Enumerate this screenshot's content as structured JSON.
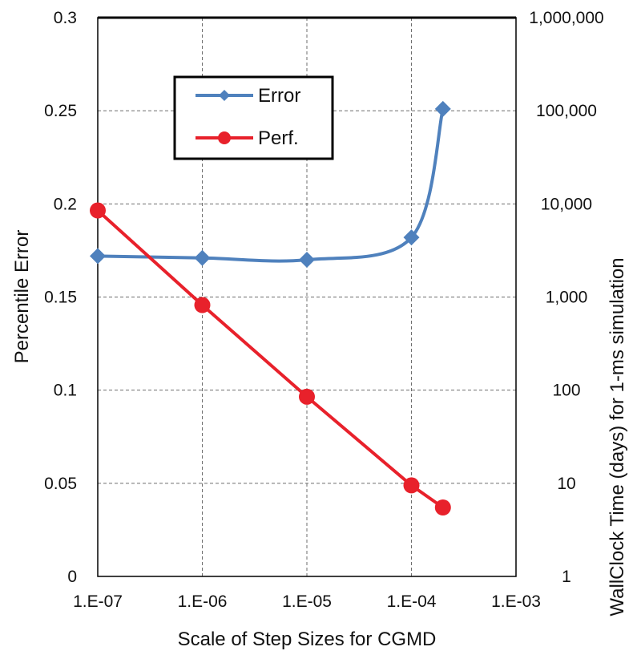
{
  "chart_data": {
    "type": "line",
    "title": "",
    "xlabel": "Scale of Step Sizes for CGMD",
    "ylabel": "Percentile Error",
    "y2label": "WallClock Time (days) for 1-ms simulation",
    "x_scale": "log",
    "xlim": [
      1e-07,
      0.001
    ],
    "ylim": [
      0,
      0.3
    ],
    "y2_scale": "log",
    "y2lim": [
      1,
      1000000
    ],
    "grid": true,
    "legend_position": "top-left",
    "x_tick_labels": [
      "1.E-07",
      "1.E-06",
      "1.E-05",
      "1.E-04",
      "1.E-03"
    ],
    "y_tick_labels": [
      "0",
      "0.05",
      "0.1",
      "0.15",
      "0.2",
      "0.25",
      "0.3"
    ],
    "y2_tick_labels": [
      "1",
      "10",
      "100",
      "1,000",
      "10,000",
      "100,000",
      "1,000,000"
    ],
    "series": [
      {
        "name": "Error",
        "axis": "left",
        "color": "#4f81bd",
        "marker": "diamond",
        "smooth": true,
        "x": [
          1e-07,
          1e-06,
          1e-05,
          0.0001,
          0.0002
        ],
        "values": [
          0.172,
          0.171,
          0.17,
          0.182,
          0.251
        ]
      },
      {
        "name": "Perf.",
        "axis": "right",
        "color": "#e8212b",
        "marker": "circle",
        "smooth": false,
        "x": [
          1e-07,
          1e-06,
          1e-05,
          0.0001,
          0.0002
        ],
        "values": [
          8500,
          820,
          85,
          9.5,
          5.5
        ]
      }
    ]
  }
}
